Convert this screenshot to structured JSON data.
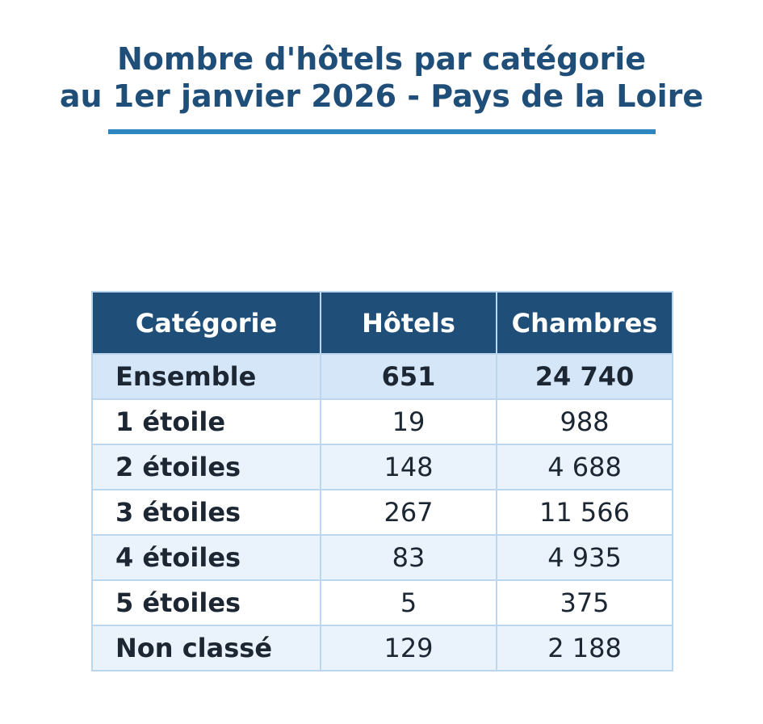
{
  "title": {
    "line1": "Nombre d'hôtels par catégorie",
    "line2": "au 1er janvier 2026 - Pays de la Loire"
  },
  "colors": {
    "title": "#1f4e79",
    "rule": "#2e86c1",
    "header_bg": "#1f4e79",
    "total_bg": "#d4e6f8",
    "stripe_bg": "#eaf3fb",
    "border": "#bcd6ee"
  },
  "chart_data": {
    "type": "table",
    "title": "Nombre d'hôtels par catégorie au 1er janvier 2026 - Pays de la Loire",
    "columns": [
      "Catégorie",
      "Hôtels",
      "Chambres"
    ],
    "rows": [
      {
        "category": "Ensemble",
        "hotels": "651",
        "rooms": "24 740",
        "total": true
      },
      {
        "category": "1 étoile",
        "hotels": "19",
        "rooms": "988"
      },
      {
        "category": "2 étoiles",
        "hotels": "148",
        "rooms": "4 688"
      },
      {
        "category": "3 étoiles",
        "hotels": "267",
        "rooms": "11 566"
      },
      {
        "category": "4 étoiles",
        "hotels": "83",
        "rooms": "4 935"
      },
      {
        "category": "5 étoiles",
        "hotels": "5",
        "rooms": "375"
      },
      {
        "category": "Non classé",
        "hotels": "129",
        "rooms": "2 188"
      }
    ]
  }
}
